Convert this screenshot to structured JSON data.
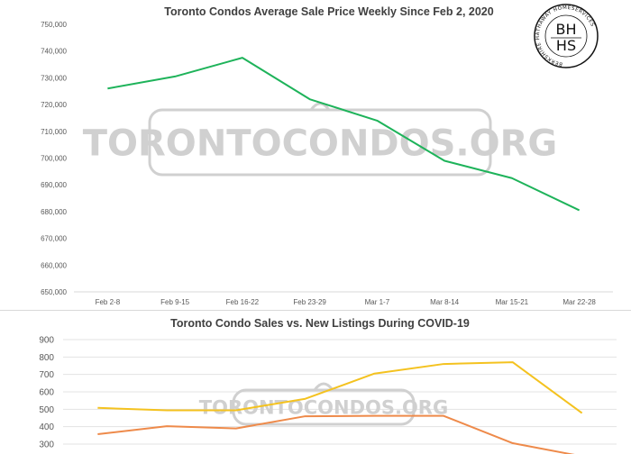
{
  "watermark": "TORONTOCONDOS.ORG",
  "logo": {
    "line1": "BH",
    "line2": "HS",
    "ring_text": "BERKSHIRE HATHAWAY HOMESERVICES"
  },
  "colors": {
    "green": "#1eb35a",
    "yellow": "#f4c21f",
    "orange": "#ee8a4a",
    "grid": "#e3e3e3",
    "watermark": "#d0d0d0"
  },
  "chart_data": [
    {
      "type": "line",
      "title": "Toronto Condos Average Sale Price Weekly Since Feb 2, 2020",
      "categories": [
        "Feb 2-8",
        "Feb 9-15",
        "Feb 16-22",
        "Feb 23-29",
        "Mar 1-7",
        "Mar 8-14",
        "Mar 15-21",
        "Mar 22-28"
      ],
      "series": [
        {
          "color": "#1eb35a",
          "values": [
            726000,
            730500,
            737500,
            722000,
            714000,
            699000,
            692500,
            680500
          ]
        }
      ],
      "ylim": [
        650000,
        750000
      ],
      "yticks": [
        "650,000",
        "660,000",
        "670,000",
        "680,000",
        "690,000",
        "700,000",
        "710,000",
        "720,000",
        "730,000",
        "740,000",
        "750,000"
      ],
      "grid": false
    },
    {
      "type": "line",
      "title": "Toronto Condo Sales vs. New Listings During COVID-19",
      "categories": [
        "",
        "",
        "",
        "",
        "",
        "",
        "",
        ""
      ],
      "series": [
        {
          "color": "#f4c21f",
          "values": [
            508,
            494,
            494,
            560,
            705,
            760,
            770,
            478
          ]
        },
        {
          "color": "#ee8a4a",
          "values": [
            357,
            403,
            390,
            460,
            462,
            462,
            305,
            230
          ]
        }
      ],
      "ylim": [
        300,
        900
      ],
      "yticks": [
        "300",
        "400",
        "500",
        "600",
        "700",
        "800",
        "900"
      ],
      "grid": true
    }
  ]
}
